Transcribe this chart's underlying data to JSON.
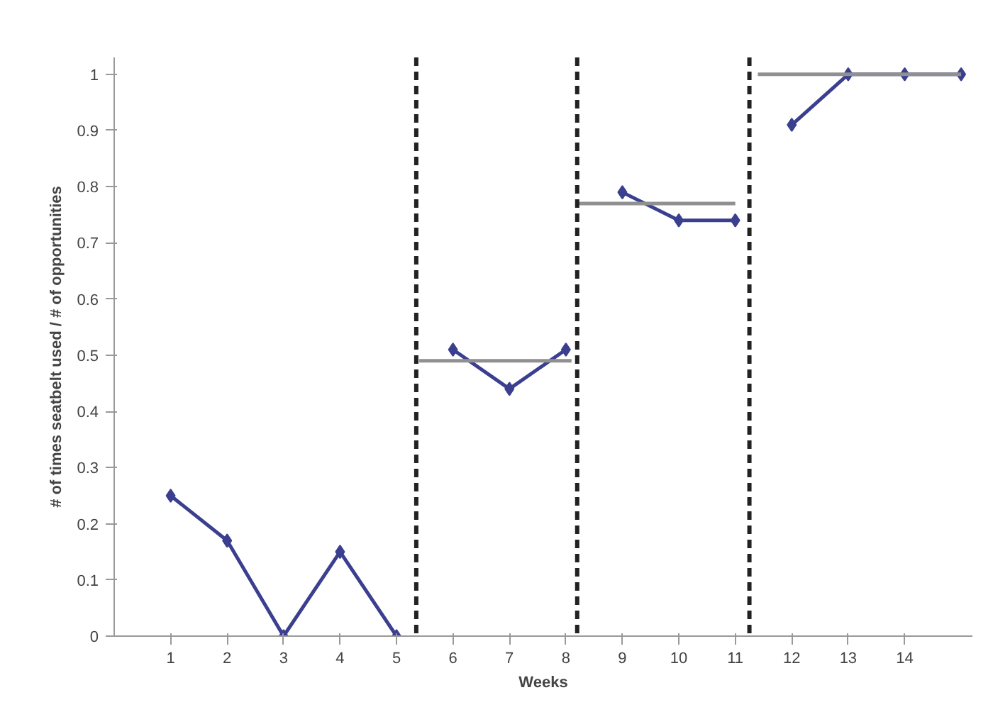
{
  "chart_data": {
    "type": "line",
    "xlabel": "Weeks",
    "ylabel": "# of times seatbelt used / # of opportunities",
    "xlim": [
      0,
      15.2
    ],
    "ylim": [
      0,
      1.03
    ],
    "xticks": [
      1,
      2,
      3,
      4,
      5,
      6,
      7,
      8,
      9,
      10,
      11,
      12,
      13,
      14
    ],
    "yticks": [
      0,
      0.1,
      0.2,
      0.3,
      0.4,
      0.5,
      0.6,
      0.7,
      0.8,
      0.9,
      1
    ],
    "grid": false,
    "marker": "diamond",
    "line_style": "solid",
    "series": [
      {
        "color": "#3b3f8f",
        "x": [
          1,
          2,
          3,
          4,
          5
        ],
        "values": [
          0.25,
          0.17,
          0,
          0.15,
          0
        ]
      },
      {
        "color": "#3b3f8f",
        "x": [
          6,
          7,
          8
        ],
        "values": [
          0.51,
          0.44,
          0.51
        ]
      },
      {
        "color": "#3b3f8f",
        "x": [
          9,
          10,
          11
        ],
        "values": [
          0.79,
          0.74,
          0.74
        ]
      },
      {
        "color": "#3b3f8f",
        "x": [
          12,
          13,
          14,
          15
        ],
        "values": [
          0.91,
          1,
          1,
          1
        ]
      },
      {
        "color": "#909090",
        "marker": "none",
        "x": [
          5.4,
          8.1
        ],
        "values": [
          0.49,
          0.49
        ]
      },
      {
        "color": "#909090",
        "marker": "none",
        "x": [
          8.2,
          11
        ],
        "values": [
          0.77,
          0.77
        ]
      },
      {
        "color": "#909090",
        "marker": "none",
        "x": [
          11.4,
          15
        ],
        "values": [
          1,
          1
        ]
      }
    ],
    "ref_lines": [
      {
        "axis": "x",
        "value": 5.35,
        "color": "#222222",
        "line_style": "dashed"
      },
      {
        "axis": "x",
        "value": 8.2,
        "color": "#222222",
        "line_style": "dashed"
      },
      {
        "axis": "x",
        "value": 11.25,
        "color": "#222222",
        "line_style": "dashed"
      }
    ]
  }
}
